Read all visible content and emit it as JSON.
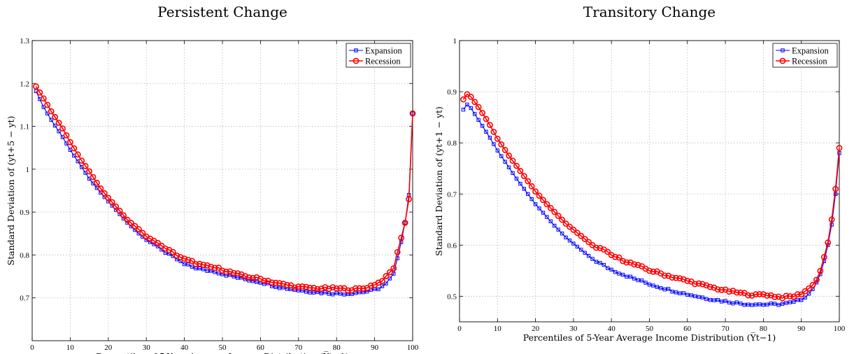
{
  "chart_data": [
    {
      "type": "line",
      "title": "Persistent Change",
      "xlabel": "Percentiles of 5-Year Average Income Distribution (Y̅t−1)",
      "ylabel": "Standard Deviation of (yt+5 − yt)",
      "xlim": [
        0,
        100
      ],
      "ylim": [
        0.6,
        1.3
      ],
      "x_ticks": [
        "0",
        "10",
        "20",
        "30",
        "40",
        "50",
        "60",
        "70",
        "80",
        "90",
        "100"
      ],
      "y_ticks": [
        "0.7",
        "0.8",
        "0.9",
        "1",
        "1.1",
        "1.2",
        "1.3"
      ],
      "legend": "top-right",
      "grid": true,
      "series": [
        {
          "name": "Expansion",
          "color": "#0000ff",
          "marker": "square",
          "anchors": [
            [
              1,
              1.182
            ],
            [
              3,
              1.145
            ],
            [
              5,
              1.115
            ],
            [
              8,
              1.075
            ],
            [
              10,
              1.045
            ],
            [
              13,
              1.005
            ],
            [
              15,
              0.978
            ],
            [
              18,
              0.945
            ],
            [
              20,
              0.925
            ],
            [
              23,
              0.895
            ],
            [
              25,
              0.875
            ],
            [
              28,
              0.85
            ],
            [
              30,
              0.835
            ],
            [
              33,
              0.82
            ],
            [
              35,
              0.805
            ],
            [
              38,
              0.79
            ],
            [
              40,
              0.778
            ],
            [
              45,
              0.765
            ],
            [
              48,
              0.762
            ],
            [
              50,
              0.756
            ],
            [
              55,
              0.745
            ],
            [
              60,
              0.737
            ],
            [
              65,
              0.725
            ],
            [
              70,
              0.718
            ],
            [
              75,
              0.713
            ],
            [
              80,
              0.71
            ],
            [
              83,
              0.71
            ],
            [
              85,
              0.712
            ],
            [
              87,
              0.714
            ],
            [
              89,
              0.716
            ],
            [
              91,
              0.722
            ],
            [
              93,
              0.732
            ],
            [
              95,
              0.755
            ],
            [
              96,
              0.79
            ],
            [
              97,
              0.83
            ],
            [
              98,
              0.875
            ],
            [
              99,
              0.94
            ],
            [
              100,
              1.13
            ]
          ]
        },
        {
          "name": "Recession",
          "color": "#ff0000",
          "marker": "circle",
          "anchors": [
            [
              1,
              1.193
            ],
            [
              3,
              1.165
            ],
            [
              5,
              1.135
            ],
            [
              8,
              1.095
            ],
            [
              10,
              1.063
            ],
            [
              13,
              1.02
            ],
            [
              15,
              0.995
            ],
            [
              18,
              0.955
            ],
            [
              20,
              0.933
            ],
            [
              23,
              0.903
            ],
            [
              25,
              0.882
            ],
            [
              28,
              0.86
            ],
            [
              30,
              0.843
            ],
            [
              33,
              0.828
            ],
            [
              35,
              0.815
            ],
            [
              38,
              0.8
            ],
            [
              40,
              0.79
            ],
            [
              45,
              0.775
            ],
            [
              48,
              0.77
            ],
            [
              50,
              0.766
            ],
            [
              55,
              0.752
            ],
            [
              60,
              0.744
            ],
            [
              65,
              0.733
            ],
            [
              70,
              0.725
            ],
            [
              75,
              0.722
            ],
            [
              80,
              0.722
            ],
            [
              83,
              0.72
            ],
            [
              85,
              0.72
            ],
            [
              87,
              0.722
            ],
            [
              89,
              0.728
            ],
            [
              91,
              0.735
            ],
            [
              93,
              0.748
            ],
            [
              95,
              0.77
            ],
            [
              96,
              0.805
            ],
            [
              97,
              0.84
            ],
            [
              98,
              0.875
            ],
            [
              99,
              0.93
            ],
            [
              100,
              1.13
            ]
          ]
        }
      ]
    },
    {
      "type": "line",
      "title": "Transitory Change",
      "xlabel": "Percentiles of 5-Year Average Income Distribution (Y̅t−1)",
      "ylabel": "Standard Deviation of (yt+1 − yt)",
      "xlim": [
        0,
        100
      ],
      "ylim": [
        0.45,
        1.0
      ],
      "x_ticks": [
        "0",
        "10",
        "20",
        "30",
        "40",
        "50",
        "60",
        "70",
        "80",
        "90",
        "100"
      ],
      "y_ticks": [
        "0.5",
        "0.6",
        "0.7",
        "0.8",
        "0.9",
        "1"
      ],
      "legend": "top-right",
      "grid": true,
      "series": [
        {
          "name": "Expansion",
          "color": "#0000ff",
          "marker": "square",
          "anchors": [
            [
              1,
              0.865
            ],
            [
              2,
              0.875
            ],
            [
              3,
              0.868
            ],
            [
              5,
              0.845
            ],
            [
              8,
              0.81
            ],
            [
              10,
              0.785
            ],
            [
              13,
              0.752
            ],
            [
              15,
              0.73
            ],
            [
              18,
              0.7
            ],
            [
              20,
              0.68
            ],
            [
              23,
              0.655
            ],
            [
              25,
              0.638
            ],
            [
              28,
              0.615
            ],
            [
              30,
              0.603
            ],
            [
              33,
              0.585
            ],
            [
              35,
              0.573
            ],
            [
              38,
              0.56
            ],
            [
              40,
              0.552
            ],
            [
              45,
              0.537
            ],
            [
              50,
              0.524
            ],
            [
              55,
              0.513
            ],
            [
              60,
              0.504
            ],
            [
              65,
              0.496
            ],
            [
              70,
              0.49
            ],
            [
              75,
              0.485
            ],
            [
              80,
              0.484
            ],
            [
              83,
              0.484
            ],
            [
              85,
              0.485
            ],
            [
              88,
              0.488
            ],
            [
              90,
              0.494
            ],
            [
              92,
              0.505
            ],
            [
              94,
              0.525
            ],
            [
              95,
              0.545
            ],
            [
              96,
              0.57
            ],
            [
              97,
              0.6
            ],
            [
              98,
              0.64
            ],
            [
              99,
              0.7
            ],
            [
              100,
              0.78
            ]
          ]
        },
        {
          "name": "Recession",
          "color": "#ff0000",
          "marker": "circle",
          "anchors": [
            [
              1,
              0.885
            ],
            [
              2,
              0.895
            ],
            [
              3,
              0.89
            ],
            [
              5,
              0.87
            ],
            [
              8,
              0.835
            ],
            [
              10,
              0.808
            ],
            [
              13,
              0.775
            ],
            [
              15,
              0.755
            ],
            [
              18,
              0.725
            ],
            [
              20,
              0.705
            ],
            [
              23,
              0.68
            ],
            [
              25,
              0.665
            ],
            [
              28,
              0.642
            ],
            [
              30,
              0.63
            ],
            [
              33,
              0.612
            ],
            [
              35,
              0.6
            ],
            [
              38,
              0.59
            ],
            [
              40,
              0.58
            ],
            [
              45,
              0.565
            ],
            [
              50,
              0.551
            ],
            [
              55,
              0.54
            ],
            [
              60,
              0.53
            ],
            [
              65,
              0.52
            ],
            [
              70,
              0.511
            ],
            [
              75,
              0.505
            ],
            [
              78,
              0.502
            ],
            [
              80,
              0.504
            ],
            [
              83,
              0.5
            ],
            [
              85,
              0.498
            ],
            [
              88,
              0.5
            ],
            [
              90,
              0.505
            ],
            [
              92,
              0.515
            ],
            [
              94,
              0.532
            ],
            [
              95,
              0.55
            ],
            [
              96,
              0.575
            ],
            [
              97,
              0.605
            ],
            [
              98,
              0.65
            ],
            [
              99,
              0.71
            ],
            [
              100,
              0.79
            ]
          ]
        }
      ]
    }
  ]
}
